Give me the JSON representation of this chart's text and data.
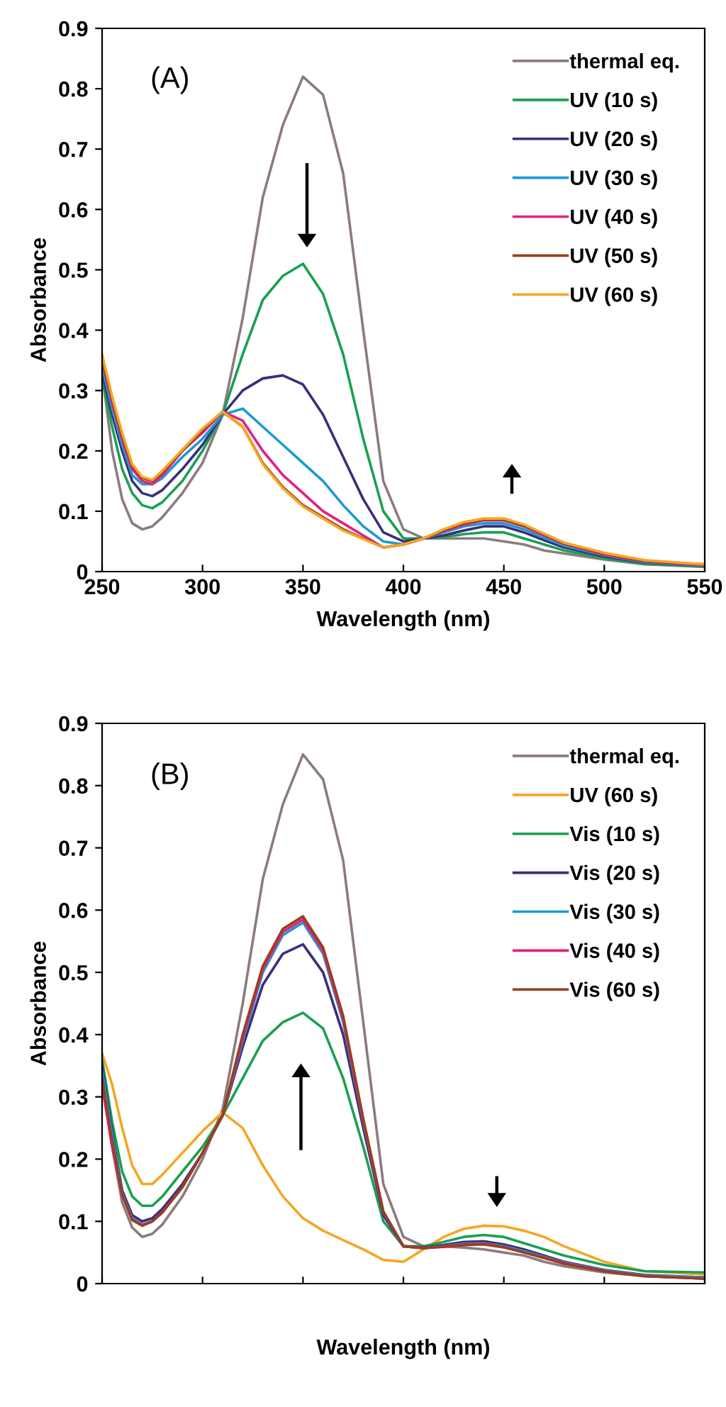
{
  "chart_data": [
    {
      "type": "line",
      "annotations": [
        "(A)"
      ],
      "xlabel": "Wavelength (nm)",
      "ylabel": "Absorbance",
      "xlim": [
        250,
        550
      ],
      "ylim": [
        0,
        0.9
      ],
      "xticks": [
        250,
        300,
        350,
        400,
        450,
        500,
        550
      ],
      "yticks": [
        0,
        0.1,
        0.2,
        0.3,
        0.4,
        0.5,
        0.6,
        0.7,
        0.8,
        0.9
      ],
      "grid": false,
      "legend": "top right",
      "marker": "none",
      "line_style": "solid",
      "x": [
        250,
        255,
        260,
        265,
        270,
        275,
        280,
        290,
        300,
        310,
        320,
        330,
        340,
        350,
        360,
        370,
        380,
        390,
        400,
        410,
        420,
        430,
        440,
        450,
        460,
        470,
        480,
        500,
        520,
        550
      ],
      "series": [
        {
          "name": "thermal eq.",
          "color": "#8c7b7e",
          "values": [
            0.33,
            0.2,
            0.12,
            0.08,
            0.07,
            0.075,
            0.09,
            0.13,
            0.18,
            0.26,
            0.42,
            0.62,
            0.74,
            0.82,
            0.79,
            0.66,
            0.4,
            0.15,
            0.07,
            0.055,
            0.055,
            0.055,
            0.055,
            0.05,
            0.045,
            0.035,
            0.03,
            0.02,
            0.012,
            0.008
          ]
        },
        {
          "name": "UV (10 s)",
          "color": "#1aa050",
          "values": [
            0.32,
            0.24,
            0.17,
            0.13,
            0.11,
            0.105,
            0.115,
            0.15,
            0.2,
            0.26,
            0.36,
            0.45,
            0.49,
            0.51,
            0.46,
            0.36,
            0.22,
            0.1,
            0.055,
            0.055,
            0.057,
            0.062,
            0.065,
            0.065,
            0.055,
            0.045,
            0.035,
            0.022,
            0.013,
            0.008
          ]
        },
        {
          "name": "UV (20 s)",
          "color": "#3a2f7a",
          "values": [
            0.33,
            0.26,
            0.2,
            0.15,
            0.13,
            0.125,
            0.135,
            0.17,
            0.21,
            0.26,
            0.3,
            0.32,
            0.325,
            0.31,
            0.26,
            0.19,
            0.12,
            0.065,
            0.05,
            0.055,
            0.06,
            0.068,
            0.075,
            0.075,
            0.065,
            0.052,
            0.04,
            0.025,
            0.015,
            0.01
          ]
        },
        {
          "name": "UV (30 s)",
          "color": "#1a9ad6",
          "values": [
            0.34,
            0.27,
            0.21,
            0.16,
            0.145,
            0.145,
            0.155,
            0.19,
            0.22,
            0.26,
            0.27,
            0.24,
            0.21,
            0.18,
            0.15,
            0.11,
            0.075,
            0.05,
            0.045,
            0.055,
            0.065,
            0.075,
            0.08,
            0.08,
            0.07,
            0.056,
            0.043,
            0.027,
            0.016,
            0.01
          ]
        },
        {
          "name": "UV (40 s)",
          "color": "#e0237f",
          "values": [
            0.35,
            0.28,
            0.22,
            0.17,
            0.15,
            0.145,
            0.16,
            0.2,
            0.23,
            0.265,
            0.25,
            0.2,
            0.16,
            0.13,
            0.1,
            0.08,
            0.06,
            0.04,
            0.045,
            0.055,
            0.067,
            0.078,
            0.085,
            0.085,
            0.075,
            0.06,
            0.046,
            0.028,
            0.017,
            0.01
          ]
        },
        {
          "name": "UV (50 s)",
          "color": "#9a3e1e",
          "values": [
            0.355,
            0.285,
            0.225,
            0.175,
            0.155,
            0.15,
            0.165,
            0.2,
            0.235,
            0.265,
            0.24,
            0.18,
            0.14,
            0.11,
            0.09,
            0.07,
            0.055,
            0.04,
            0.045,
            0.055,
            0.068,
            0.08,
            0.086,
            0.086,
            0.076,
            0.062,
            0.047,
            0.03,
            0.018,
            0.012
          ]
        },
        {
          "name": "UV (60 s)",
          "color": "#f5a623",
          "values": [
            0.36,
            0.29,
            0.23,
            0.178,
            0.157,
            0.152,
            0.167,
            0.202,
            0.237,
            0.265,
            0.24,
            0.178,
            0.138,
            0.108,
            0.088,
            0.068,
            0.054,
            0.04,
            0.045,
            0.055,
            0.07,
            0.082,
            0.088,
            0.088,
            0.078,
            0.063,
            0.048,
            0.031,
            0.019,
            0.012
          ]
        }
      ]
    },
    {
      "type": "line",
      "annotations": [
        "(B)"
      ],
      "xlabel": "Wavelength (nm)",
      "ylabel": "Absorbance",
      "xlim": [
        250,
        550
      ],
      "ylim": [
        0,
        0.9
      ],
      "xticks": [
        250,
        300,
        350,
        400,
        450,
        500,
        550
      ],
      "yticks": [
        0,
        0.1,
        0.2,
        0.3,
        0.4,
        0.5,
        0.6,
        0.7,
        0.8,
        0.9
      ],
      "tick_labels": "y",
      "grid": false,
      "legend": "top right",
      "marker": "none",
      "line_style": "solid",
      "x": [
        250,
        255,
        260,
        265,
        270,
        275,
        280,
        290,
        300,
        310,
        320,
        330,
        340,
        350,
        360,
        370,
        380,
        390,
        400,
        410,
        420,
        430,
        440,
        450,
        460,
        470,
        480,
        500,
        520,
        550
      ],
      "series": [
        {
          "name": "thermal eq.",
          "color": "#8c7b7e",
          "values": [
            0.33,
            0.22,
            0.13,
            0.09,
            0.075,
            0.08,
            0.095,
            0.14,
            0.2,
            0.28,
            0.45,
            0.65,
            0.77,
            0.85,
            0.81,
            0.68,
            0.42,
            0.16,
            0.075,
            0.06,
            0.06,
            0.058,
            0.055,
            0.05,
            0.045,
            0.035,
            0.028,
            0.018,
            0.012,
            0.008
          ]
        },
        {
          "name": "UV (60 s)",
          "color": "#f5a623",
          "values": [
            0.37,
            0.32,
            0.25,
            0.19,
            0.16,
            0.16,
            0.175,
            0.21,
            0.245,
            0.275,
            0.25,
            0.19,
            0.14,
            0.105,
            0.085,
            0.07,
            0.055,
            0.038,
            0.035,
            0.055,
            0.075,
            0.088,
            0.093,
            0.092,
            0.085,
            0.075,
            0.06,
            0.035,
            0.02,
            0.015
          ]
        },
        {
          "name": "Vis (10 s)",
          "color": "#1aa050",
          "values": [
            0.36,
            0.26,
            0.18,
            0.14,
            0.125,
            0.125,
            0.14,
            0.18,
            0.22,
            0.27,
            0.33,
            0.39,
            0.42,
            0.435,
            0.41,
            0.33,
            0.22,
            0.1,
            0.06,
            0.06,
            0.067,
            0.075,
            0.078,
            0.075,
            0.065,
            0.055,
            0.045,
            0.03,
            0.02,
            0.018
          ]
        },
        {
          "name": "Vis (20 s)",
          "color": "#3a2f7a",
          "values": [
            0.348,
            0.245,
            0.15,
            0.11,
            0.1,
            0.105,
            0.12,
            0.16,
            0.21,
            0.27,
            0.38,
            0.48,
            0.53,
            0.545,
            0.5,
            0.4,
            0.25,
            0.11,
            0.06,
            0.058,
            0.062,
            0.067,
            0.068,
            0.063,
            0.055,
            0.045,
            0.035,
            0.022,
            0.014,
            0.01
          ]
        },
        {
          "name": "Vis (30 s)",
          "color": "#1a9ad6",
          "values": [
            0.34,
            0.238,
            0.145,
            0.105,
            0.095,
            0.1,
            0.115,
            0.155,
            0.21,
            0.27,
            0.39,
            0.5,
            0.56,
            0.58,
            0.53,
            0.42,
            0.26,
            0.115,
            0.06,
            0.057,
            0.06,
            0.064,
            0.065,
            0.06,
            0.052,
            0.043,
            0.034,
            0.021,
            0.013,
            0.01
          ]
        },
        {
          "name": "Vis (40 s)",
          "color": "#e0237f",
          "values": [
            0.318,
            0.22,
            0.143,
            0.103,
            0.094,
            0.1,
            0.115,
            0.155,
            0.21,
            0.27,
            0.395,
            0.505,
            0.565,
            0.585,
            0.535,
            0.425,
            0.262,
            0.115,
            0.06,
            0.057,
            0.06,
            0.063,
            0.064,
            0.059,
            0.05,
            0.042,
            0.033,
            0.02,
            0.012,
            0.008
          ]
        },
        {
          "name": "Vis (60 s)",
          "color": "#9a3e1e",
          "values": [
            0.33,
            0.229,
            0.142,
            0.102,
            0.093,
            0.1,
            0.114,
            0.155,
            0.21,
            0.27,
            0.4,
            0.51,
            0.57,
            0.59,
            0.54,
            0.43,
            0.265,
            0.116,
            0.06,
            0.057,
            0.059,
            0.062,
            0.063,
            0.058,
            0.05,
            0.041,
            0.032,
            0.02,
            0.012,
            0.008
          ]
        }
      ]
    }
  ]
}
